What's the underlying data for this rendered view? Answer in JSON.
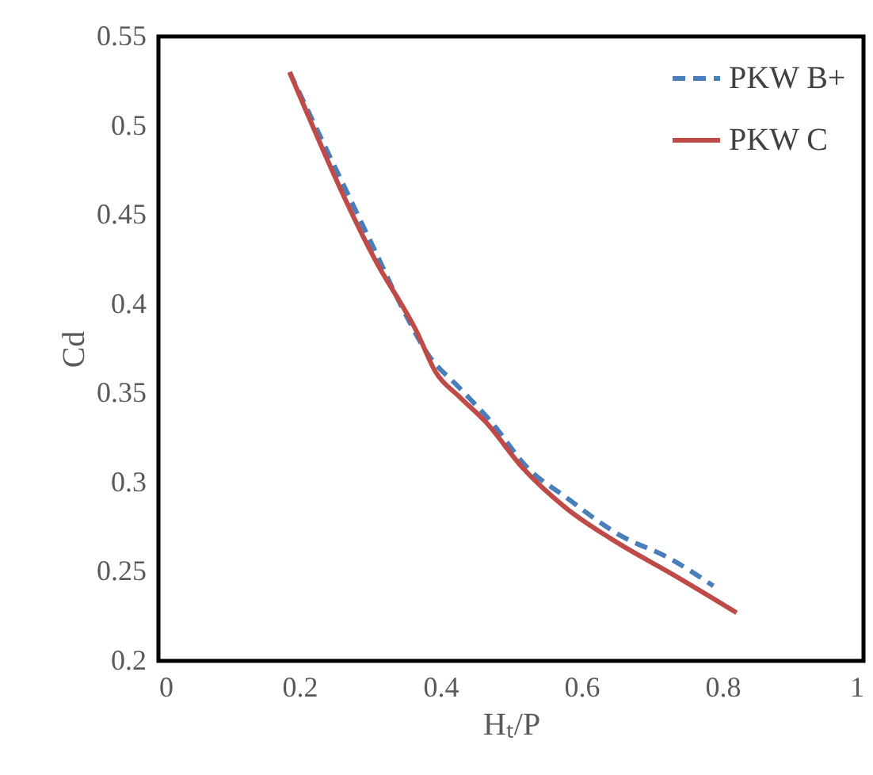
{
  "chart_data": {
    "type": "line",
    "xlabel": "Hₜ/P",
    "ylabel": "Cd",
    "xlim": [
      0,
      1
    ],
    "xticks": [
      0,
      0.2,
      0.4,
      0.6,
      0.8,
      1
    ],
    "ylim": [
      0.2,
      0.55
    ],
    "yticks": [
      0.2,
      0.25,
      0.3,
      0.35,
      0.4,
      0.45,
      0.5,
      0.55
    ],
    "grid": false,
    "legend": "top right",
    "marker": "none",
    "series": [
      {
        "name": "PKW B+",
        "color": "#4a7ebb",
        "line_style": "dashed",
        "x": [
          0.186,
          0.307,
          0.352,
          0.382,
          0.427,
          0.472,
          0.524,
          0.577,
          0.652,
          0.727,
          0.787
        ],
        "values": [
          0.53,
          0.43,
          0.393,
          0.372,
          0.353,
          0.334,
          0.308,
          0.292,
          0.271,
          0.257,
          0.242
        ]
      },
      {
        "name": "PKW C",
        "color": "#be4b48",
        "line_style": "solid",
        "x": [
          0.186,
          0.307,
          0.367,
          0.393,
          0.427,
          0.464,
          0.517,
          0.577,
          0.652,
          0.727,
          0.82
        ],
        "values": [
          0.53,
          0.425,
          0.384,
          0.362,
          0.348,
          0.334,
          0.308,
          0.286,
          0.266,
          0.249,
          0.227
        ]
      }
    ]
  }
}
